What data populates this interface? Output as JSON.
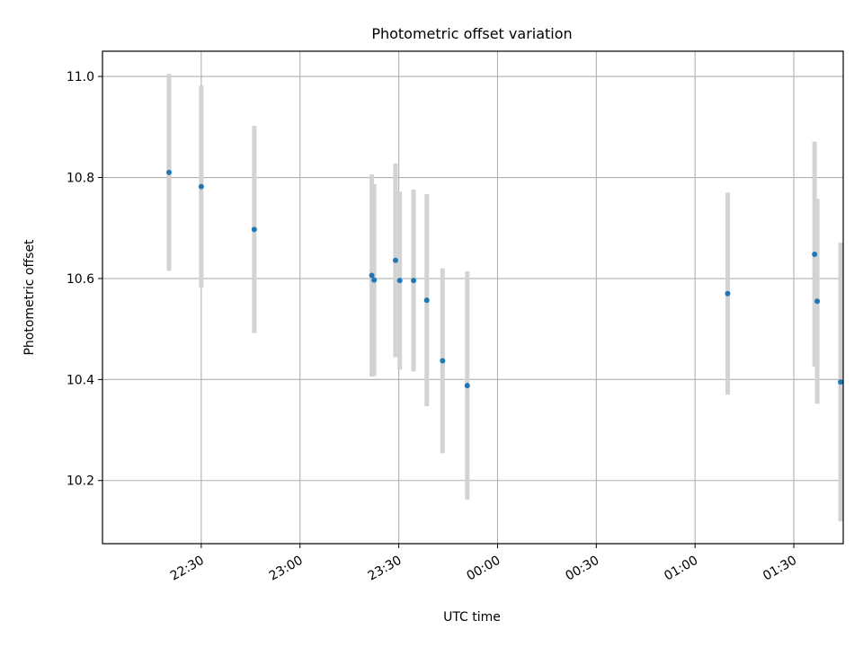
{
  "chart_data": {
    "type": "scatter",
    "title": "Photometric offset variation",
    "xlabel": "UTC time",
    "ylabel": "Photometric offset",
    "xlim_minutes": [
      -20,
      205
    ],
    "ylim": [
      10.075,
      11.05
    ],
    "x_ticks": [
      {
        "minute": 10,
        "label": "22:30"
      },
      {
        "minute": 40,
        "label": "23:00"
      },
      {
        "minute": 70,
        "label": "23:30"
      },
      {
        "minute": 100,
        "label": "00:00"
      },
      {
        "minute": 130,
        "label": "00:30"
      },
      {
        "minute": 160,
        "label": "01:00"
      },
      {
        "minute": 190,
        "label": "01:30"
      }
    ],
    "y_ticks": [
      {
        "value": 10.2,
        "label": "10.2"
      },
      {
        "value": 10.4,
        "label": "10.4"
      },
      {
        "value": 10.6,
        "label": "10.6"
      },
      {
        "value": 10.8,
        "label": "10.8"
      },
      {
        "value": 11.0,
        "label": "11.0"
      }
    ],
    "grid": true,
    "marker_color": "#1f77b4",
    "errorbar_color": "#d3d3d3",
    "points": [
      {
        "time": "22:20",
        "minute": 0.2,
        "y": 10.81,
        "err": 0.195
      },
      {
        "time": "22:30",
        "minute": 10.0,
        "y": 10.782,
        "err": 0.2
      },
      {
        "time": "22:46",
        "minute": 26.1,
        "y": 10.697,
        "err": 0.205
      },
      {
        "time": "23:21",
        "minute": 61.8,
        "y": 10.606,
        "err": 0.2
      },
      {
        "time": "23:22",
        "minute": 62.5,
        "y": 10.597,
        "err": 0.19
      },
      {
        "time": "23:28",
        "minute": 69.0,
        "y": 10.636,
        "err": 0.192
      },
      {
        "time": "23:30",
        "minute": 70.3,
        "y": 10.596,
        "err": 0.176
      },
      {
        "time": "23:34",
        "minute": 74.5,
        "y": 10.596,
        "err": 0.18
      },
      {
        "time": "23:38",
        "minute": 78.5,
        "y": 10.557,
        "err": 0.21
      },
      {
        "time": "23:43",
        "minute": 83.3,
        "y": 10.437,
        "err": 0.183
      },
      {
        "time": "23:50",
        "minute": 90.8,
        "y": 10.388,
        "err": 0.226
      },
      {
        "time": "01:10",
        "minute": 169.9,
        "y": 10.57,
        "err": 0.2
      },
      {
        "time": "01:36",
        "minute": 196.3,
        "y": 10.648,
        "err": 0.223
      },
      {
        "time": "01:37",
        "minute": 197.1,
        "y": 10.555,
        "err": 0.203
      },
      {
        "time": "01:44",
        "minute": 204.2,
        "y": 10.395,
        "err": 0.276
      }
    ]
  }
}
